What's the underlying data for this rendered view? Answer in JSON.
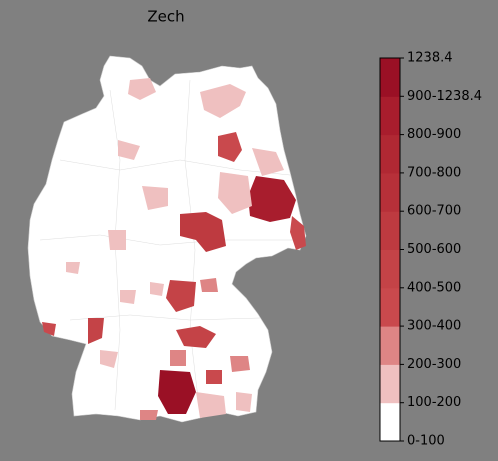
{
  "title": "Zech",
  "colorbar": {
    "ticks": [
      "0-100",
      "100-200",
      "200-300",
      "300-400",
      "400-500",
      "500-600",
      "600-700",
      "700-800",
      "800-900",
      "900-1238.4",
      "1238.4"
    ],
    "colors": [
      "#ffffff",
      "#efc0c0",
      "#de8585",
      "#c9494d",
      "#c44347",
      "#be3a40",
      "#b73039",
      "#b02833",
      "#a81d2d",
      "#9a1025"
    ]
  }
}
